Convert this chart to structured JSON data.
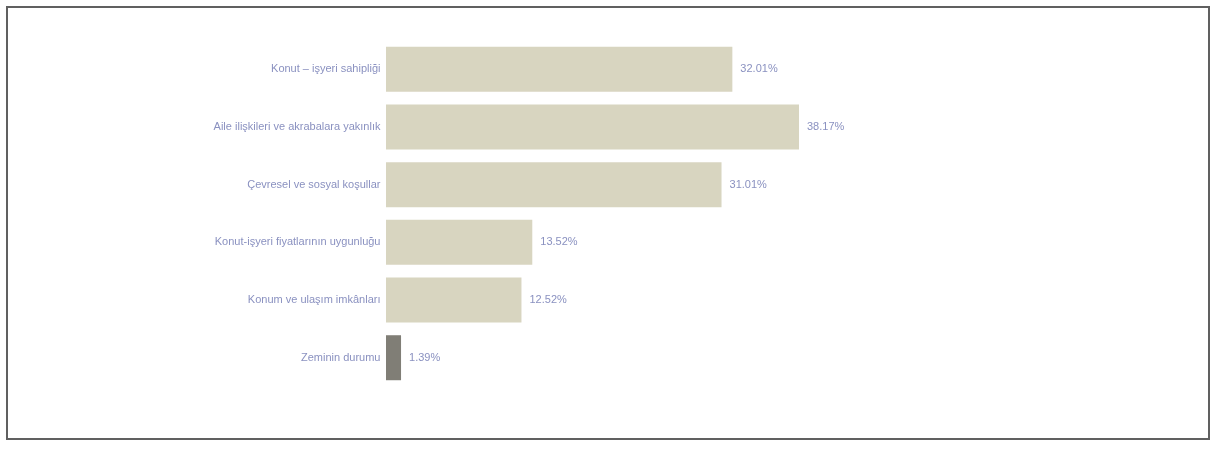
{
  "chart_data": {
    "type": "bar",
    "orientation": "horizontal",
    "categories": [
      "Konut – işyeri sahipliği",
      "Aile ilişkileri ve akrabalara yakınlık",
      "Çevresel ve sosyal koşullar",
      "Konut-işyeri fiyatlarının uygunluğu",
      "Konum ve ulaşım imkânları",
      "Zeminin durumu"
    ],
    "values": [
      32.01,
      38.17,
      31.01,
      13.52,
      12.52,
      1.39
    ],
    "colors": [
      "#d8d5c0",
      "#d8d5c0",
      "#d8d5c0",
      "#d8d5c0",
      "#d8d5c0",
      "#807e76"
    ],
    "value_labels": [
      "32.01%",
      "38.17%",
      "31.01%",
      "13.52%",
      "12.52%",
      "1.39%"
    ]
  }
}
